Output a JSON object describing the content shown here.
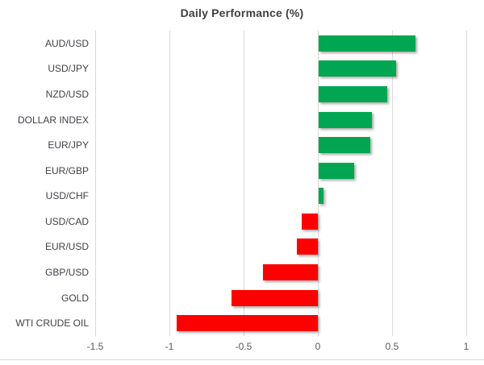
{
  "chart_data": {
    "type": "bar",
    "orientation": "horizontal",
    "title": "Daily Performance (%)",
    "categories": [
      "AUD/USD",
      "USD/JPY",
      "NZD/USD",
      "DOLLAR INDEX",
      "EUR/JPY",
      "EUR/GBP",
      "USD/CHF",
      "USD/CAD",
      "EUR/USD",
      "GBP/USD",
      "GOLD",
      "WTI CRUDE OIL"
    ],
    "values": [
      0.65,
      0.52,
      0.46,
      0.36,
      0.35,
      0.24,
      0.03,
      -0.11,
      -0.14,
      -0.37,
      -0.58,
      -0.95
    ],
    "xlim": [
      -1.5,
      1
    ],
    "xticks": [
      -1.5,
      -1,
      -0.5,
      0,
      0.5,
      1
    ],
    "xtick_labels": [
      "-1.5",
      "-1",
      "-0.5",
      "0",
      "0.5",
      "1"
    ],
    "grid": true,
    "legend": false,
    "xlabel": "",
    "ylabel": "",
    "colors": {
      "positive": "#00A651",
      "negative": "#FF0000",
      "gridline": "#D9D9D9",
      "title_text": "#404040",
      "category_text": "#3F3F46",
      "tick_text": "#595959"
    }
  }
}
